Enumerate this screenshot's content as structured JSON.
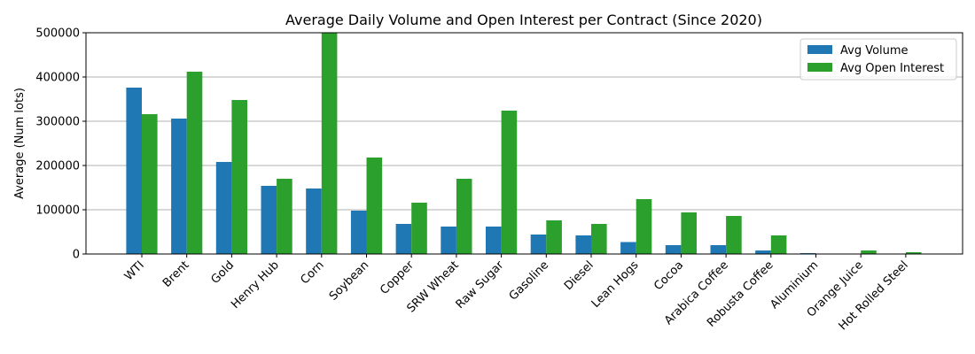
{
  "chart_data": {
    "type": "bar",
    "title": "Average Daily Volume and Open Interest per Contract (Since 2020)",
    "xlabel": "",
    "ylabel": "Average (Num lots)",
    "ylim": [
      0,
      500000
    ],
    "yticks": [
      0,
      100000,
      200000,
      300000,
      400000,
      500000
    ],
    "ytick_labels": [
      "0",
      "100000",
      "200000",
      "300000",
      "400000",
      "500000"
    ],
    "grid": "y",
    "legend_position": "top-right",
    "categories": [
      "WTI",
      "Brent",
      "Gold",
      "Henry Hub",
      "Corn",
      "Soybean",
      "Copper",
      "SRW Wheat",
      "Raw Sugar",
      "Gasoline",
      "Diesel",
      "Lean Hogs",
      "Cocoa",
      "Arabica Coffee",
      "Robusta Coffee",
      "Aluminium",
      "Orange Juice",
      "Hot Rolled Steel"
    ],
    "series": [
      {
        "name": "Avg Volume",
        "color": "#1f77b4",
        "values": [
          376000,
          306000,
          208000,
          154000,
          148000,
          98000,
          68000,
          62000,
          62000,
          44000,
          42000,
          27000,
          20000,
          20000,
          8000,
          2000,
          500,
          300
        ]
      },
      {
        "name": "Avg Open Interest",
        "color": "#2ca02c",
        "values": [
          316000,
          412000,
          348000,
          170000,
          500000,
          218000,
          116000,
          170000,
          324000,
          76000,
          68000,
          124000,
          94000,
          86000,
          42000,
          0,
          8000,
          4000
        ]
      }
    ]
  }
}
